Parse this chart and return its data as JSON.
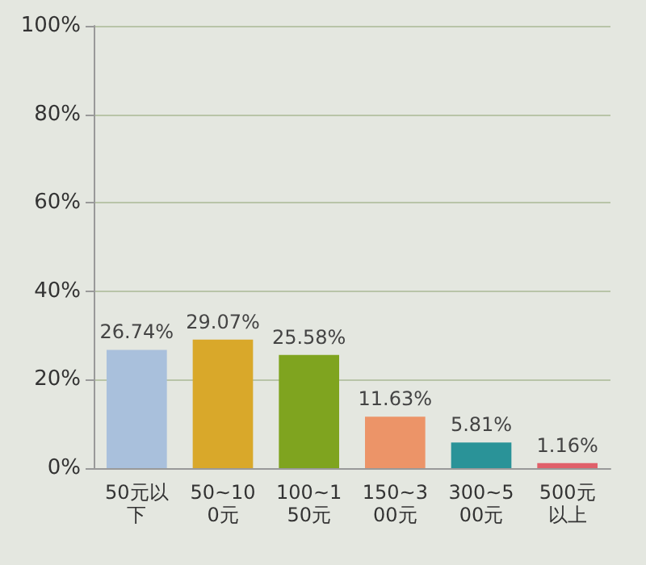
{
  "chart_data": {
    "type": "bar",
    "categories": [
      "50元以下",
      "50~100元",
      "100~150元",
      "150~300元",
      "300~500元",
      "500元以上"
    ],
    "values": [
      26.74,
      29.07,
      25.58,
      11.63,
      5.81,
      1.16
    ],
    "colors": [
      "#a9c0dc",
      "#d9a82a",
      "#7fa41f",
      "#ec9468",
      "#2a9398",
      "#e0606a"
    ],
    "value_labels": [
      "26.74%",
      "29.07%",
      "25.58%",
      "11.63%",
      "5.81%",
      "1.16%"
    ],
    "ylim": [
      0,
      100
    ],
    "yticks": [
      {
        "value": 0,
        "label": "0%"
      },
      {
        "value": 20,
        "label": "20%"
      },
      {
        "value": 40,
        "label": "40%"
      },
      {
        "value": 60,
        "label": "60%"
      },
      {
        "value": 80,
        "label": "80%"
      },
      {
        "value": 100,
        "label": "100%"
      }
    ],
    "grid": "y"
  }
}
